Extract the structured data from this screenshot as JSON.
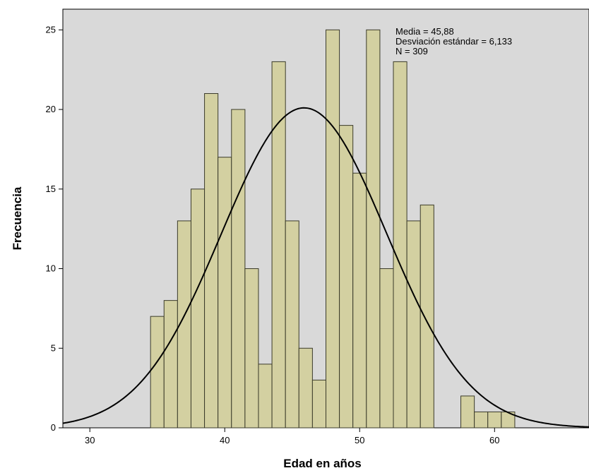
{
  "chart_data": {
    "type": "bar",
    "subtype": "histogram",
    "xlabel": "Edad en años",
    "ylabel": "Frecuencia",
    "x_ticks": [
      30,
      40,
      50,
      60
    ],
    "y_ticks": [
      0,
      5,
      10,
      15,
      20,
      25
    ],
    "xlim": [
      28,
      67
    ],
    "ylim": [
      0,
      26.3
    ],
    "bin_width": 1,
    "bins": [
      {
        "x": 35,
        "count": 7
      },
      {
        "x": 36,
        "count": 8
      },
      {
        "x": 37,
        "count": 13
      },
      {
        "x": 38,
        "count": 15
      },
      {
        "x": 39,
        "count": 21
      },
      {
        "x": 40,
        "count": 17
      },
      {
        "x": 41,
        "count": 20
      },
      {
        "x": 42,
        "count": 10
      },
      {
        "x": 43,
        "count": 4
      },
      {
        "x": 44,
        "count": 23
      },
      {
        "x": 45,
        "count": 13
      },
      {
        "x": 46,
        "count": 5
      },
      {
        "x": 47,
        "count": 3
      },
      {
        "x": 48,
        "count": 25
      },
      {
        "x": 49,
        "count": 19
      },
      {
        "x": 50,
        "count": 16
      },
      {
        "x": 51,
        "count": 25
      },
      {
        "x": 52,
        "count": 10
      },
      {
        "x": 53,
        "count": 23
      },
      {
        "x": 54,
        "count": 13
      },
      {
        "x": 55,
        "count": 14
      },
      {
        "x": 58,
        "count": 2
      },
      {
        "x": 59,
        "count": 1
      },
      {
        "x": 60,
        "count": 1
      },
      {
        "x": 61,
        "count": 1
      }
    ],
    "normal_curve": {
      "mean": 45.88,
      "sd": 6.133,
      "n": 309
    },
    "stats_text": [
      "Media = 45,88",
      "Desviación estándar = 6,133",
      "N = 309"
    ],
    "grid": false,
    "colors": {
      "plot_background": "#d9d9d9",
      "bar_fill": "#d3d0a1",
      "bar_stroke": "#3b3b2a",
      "curve": "#000000"
    }
  }
}
